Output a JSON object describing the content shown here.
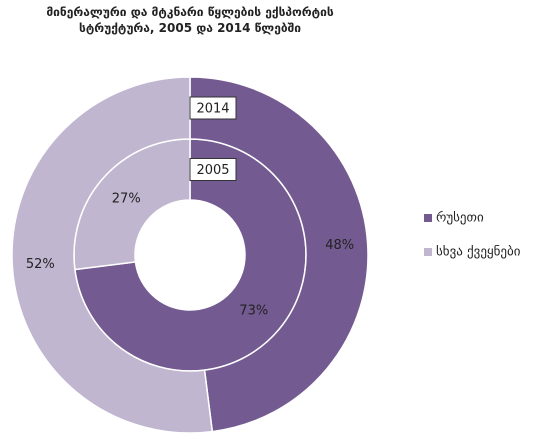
{
  "chart_data": {
    "type": "donut",
    "title": "მინერალური და მტკნარი წყლების ექსპორტის სტრუქტურა, 2005 და 2014 წლებში",
    "categories": [
      "რუსეთი",
      "სხვა ქვეყნები"
    ],
    "colors": [
      "#735a91",
      "#c0b6d0"
    ],
    "series": [
      {
        "name": "2005",
        "values": [
          73,
          27
        ],
        "value_labels": [
          "73%",
          "27%"
        ]
      },
      {
        "name": "2014",
        "values": [
          48,
          52
        ],
        "value_labels": [
          "48%",
          "52%"
        ]
      }
    ],
    "legend": "right"
  }
}
